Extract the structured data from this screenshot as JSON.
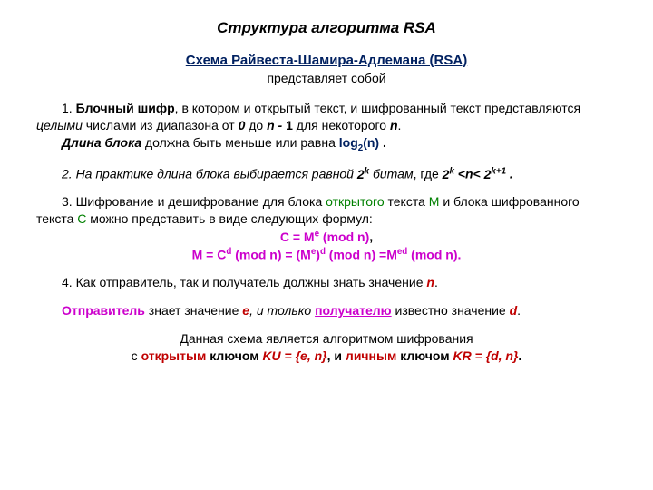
{
  "title": "Структура алгоритма RSA",
  "subtitle": "Схема Райвеста-Шамира-Адлемана (RSA)",
  "subtitle2": "представляет собой",
  "p1_a": "1. ",
  "p1_b": "Блочный шифр",
  "p1_c": ", в котором и открытый текст, и шифрованный текст представляются ",
  "p1_d": "целыми",
  "p1_e": " числами из диапазона от ",
  "p1_f": "0",
  "p1_g": " до ",
  "p1_h": "n - ",
  "p1_h2": "1",
  "p1_i": " для некоторого ",
  "p1_j": "n",
  "p1_k": ".",
  "p1_l": "Длина блока",
  "p1_m": " должна быть меньше или равна ",
  "p1_n": "log",
  "p1_n2": "2",
  "p1_n3": "(n)",
  "p1_o": " .",
  "p2_a": "2. На практике длина блока выбирается равной ",
  "p2_b": "2",
  "p2_b2": "k",
  "p2_c": "  битам",
  "p2_d": ", где ",
  "p2_e": "2",
  "p2_e2": "k",
  "p2_f_lt": " <",
  "p2_f_mid": "n< ",
  "p2_g": "2",
  "p2_g2": "k+1",
  "p2_h": " .",
  "p3_a": "3. Шифрование и дешифрование для блока ",
  "p3_b": "открытого",
  "p3_c": " текста ",
  "p3_d": "М",
  "p3_e": " и блока шифрованного текста ",
  "p3_f": "С",
  "p3_g": " можно представить в виде следующих формул:",
  "f1_a": "C = M",
  "f1_b": "e",
  "f1_c": " (mod n)",
  "f1_d": ",",
  "f2_a": "M = C",
  "f2_b": "d",
  "f2_c": " (mod n) = (M",
  "f2_d": "e",
  "f2_e": ")",
  "f2_f": "d",
  "f2_g": " (mod n) =M",
  "f2_h": "ed",
  "f2_i": " (mod n).",
  "p4_a": "4. Как отправитель, так и получатель должны знать значение ",
  "p4_b": "n",
  "p4_c": ".",
  "p5_a": "Отправитель",
  "p5_b": " знает значение ",
  "p5_c": "е",
  "p5_d": ", и только ",
  "p5_e": "получателю",
  "p5_f": " известно значение ",
  "p5_g": "d",
  "p5_h": ".",
  "p6_a": "Данная схема является алгоритмом шифрования",
  "p7_a": "с ",
  "p7_b": "открытым",
  "p7_c": " ключом ",
  "p7_d": "KU = {e, n}",
  "p7_e": ",  и ",
  "p7_f": "личным",
  "p7_g": " ключом ",
  "p7_h": "KR = {d, n}",
  "p7_i": "."
}
